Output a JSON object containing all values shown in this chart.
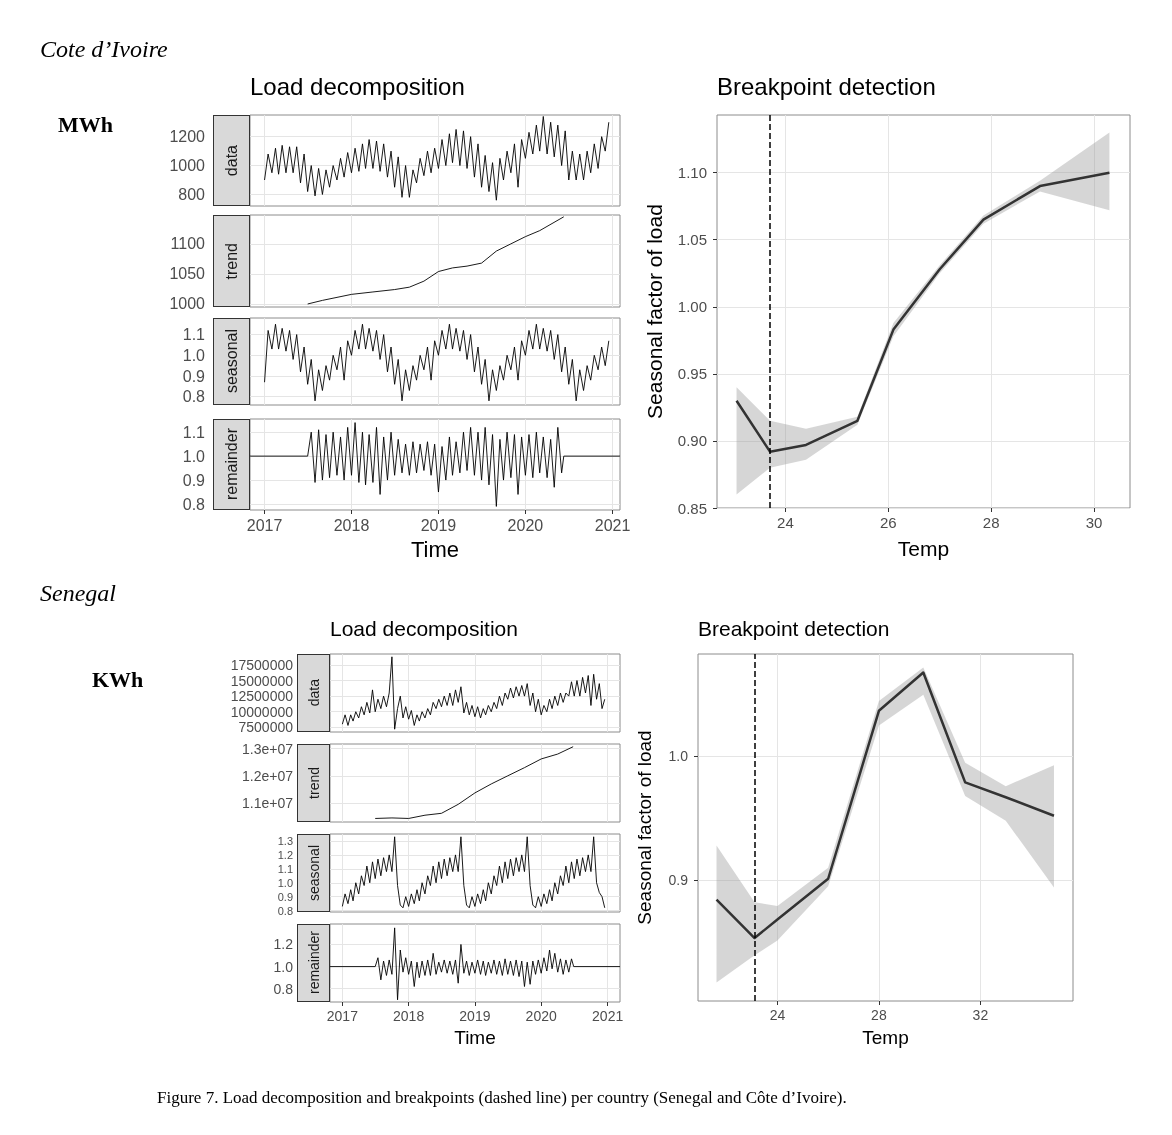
{
  "chart_data": [
    {
      "type": "line",
      "title": "Load decomposition",
      "ylabel": "data",
      "annotations": [
        "Cote d’Ivoire",
        "MWh"
      ],
      "color": "#000000",
      "marker": "none",
      "grid": true,
      "tick_labels": "y",
      "x": [
        "2017-01-01",
        "2017-01-16",
        "2017-02-01",
        "2017-02-16",
        "2017-03-01",
        "2017-03-16",
        "2017-04-01",
        "2017-04-16",
        "2017-05-01",
        "2017-05-16",
        "2017-06-01",
        "2017-06-16",
        "2017-07-01",
        "2017-07-16",
        "2017-08-01",
        "2017-08-16",
        "2017-09-01",
        "2017-09-16",
        "2017-10-01",
        "2017-10-16",
        "2017-11-01",
        "2017-11-16",
        "2017-12-01",
        "2017-12-16",
        "2018-01-01",
        "2018-01-16",
        "2018-02-01",
        "2018-02-16",
        "2018-03-01",
        "2018-03-16",
        "2018-04-01",
        "2018-04-16",
        "2018-05-01",
        "2018-05-16",
        "2018-06-01",
        "2018-06-16",
        "2018-07-01",
        "2018-07-16",
        "2018-08-01",
        "2018-08-16",
        "2018-09-01",
        "2018-09-16",
        "2018-10-01",
        "2018-10-16",
        "2018-11-01",
        "2018-11-16",
        "2018-12-01",
        "2018-12-16",
        "2019-01-01",
        "2019-01-16",
        "2019-02-01",
        "2019-02-16",
        "2019-03-01",
        "2019-03-16",
        "2019-04-01",
        "2019-04-16",
        "2019-05-01",
        "2019-05-16",
        "2019-06-01",
        "2019-06-16",
        "2019-07-01",
        "2019-07-16",
        "2019-08-01",
        "2019-08-16",
        "2019-09-01",
        "2019-09-16",
        "2019-10-01",
        "2019-10-16",
        "2019-11-01",
        "2019-11-16",
        "2019-12-01",
        "2019-12-16",
        "2020-01-01",
        "2020-01-16",
        "2020-02-01",
        "2020-02-16",
        "2020-03-01",
        "2020-03-16",
        "2020-04-01",
        "2020-04-16",
        "2020-05-01",
        "2020-05-16",
        "2020-06-01",
        "2020-06-16",
        "2020-07-01",
        "2020-07-16",
        "2020-08-01",
        "2020-08-16",
        "2020-09-01",
        "2020-09-16",
        "2020-10-01",
        "2020-10-16",
        "2020-11-01",
        "2020-11-16",
        "2020-12-01",
        "2020-12-16"
      ],
      "values": [
        900,
        1080,
        950,
        1120,
        940,
        1140,
        950,
        1130,
        950,
        1130,
        880,
        1080,
        820,
        1000,
        790,
        980,
        800,
        970,
        850,
        1000,
        900,
        1050,
        920,
        1090,
        950,
        1120,
        960,
        1150,
        980,
        1180,
        980,
        1170,
        960,
        1150,
        920,
        1100,
        850,
        1060,
        780,
        1000,
        780,
        970,
        880,
        1050,
        930,
        1100,
        950,
        1120,
        980,
        1180,
        1000,
        1220,
        1020,
        1250,
        1000,
        1240,
        980,
        1200,
        920,
        1150,
        850,
        1070,
        820,
        1020,
        760,
        1050,
        900,
        1100,
        950,
        1150,
        850,
        1180,
        1050,
        1230,
        1080,
        1280,
        1100,
        1340,
        1080,
        1300,
        1060,
        1280,
        1000,
        1240,
        900,
        1100,
        900,
        1080,
        900,
        1100,
        950,
        1150,
        980,
        1200,
        1100,
        1300
      ],
      "xlim": [
        "2016-11-01",
        "2021-02-01"
      ],
      "xticks": [
        "2017",
        "2018",
        "2019",
        "2020",
        "2021"
      ],
      "ylim": [
        720,
        1350
      ],
      "yticks": [
        800,
        1000,
        1200
      ]
    },
    {
      "type": "line",
      "ylabel": "trend",
      "color": "#000000",
      "marker": "none",
      "grid": true,
      "tick_labels": "y",
      "x": [
        "2017-07-01",
        "2017-09-01",
        "2018-01-01",
        "2018-04-01",
        "2018-07-01",
        "2018-09-01",
        "2018-11-01",
        "2019-01-01",
        "2019-03-01",
        "2019-05-01",
        "2019-07-01",
        "2019-09-01",
        "2019-11-01",
        "2020-01-01",
        "2020-03-01",
        "2020-06-10"
      ],
      "values": [
        1000,
        1006,
        1016,
        1020,
        1024,
        1028,
        1038,
        1054,
        1060,
        1063,
        1068,
        1088,
        1100,
        1112,
        1122,
        1145
      ],
      "xlim": [
        "2016-11-01",
        "2021-02-01"
      ],
      "xticks": [
        "2017",
        "2018",
        "2019",
        "2020",
        "2021"
      ],
      "ylim": [
        995,
        1148
      ],
      "yticks": [
        1000,
        1050,
        1100
      ]
    },
    {
      "type": "line",
      "ylabel": "seasonal",
      "color": "#000000",
      "marker": "none",
      "grid": true,
      "tick_labels": "y",
      "x": [
        "2017-01-01",
        "2017-01-16",
        "2017-02-01",
        "2017-02-16",
        "2017-03-01",
        "2017-03-16",
        "2017-04-01",
        "2017-04-16",
        "2017-05-01",
        "2017-05-16",
        "2017-06-01",
        "2017-06-16",
        "2017-07-01",
        "2017-07-16",
        "2017-08-01",
        "2017-08-16",
        "2017-09-01",
        "2017-09-16",
        "2017-10-01",
        "2017-10-16",
        "2017-11-01",
        "2017-11-16",
        "2017-12-01",
        "2017-12-16",
        "2018-01-01",
        "2018-01-16",
        "2018-02-01",
        "2018-02-16",
        "2018-03-01",
        "2018-03-16",
        "2018-04-01",
        "2018-04-16",
        "2018-05-01",
        "2018-05-16",
        "2018-06-01",
        "2018-06-16",
        "2018-07-01",
        "2018-07-16",
        "2018-08-01",
        "2018-08-16",
        "2018-09-01",
        "2018-09-16",
        "2018-10-01",
        "2018-10-16",
        "2018-11-01",
        "2018-11-16",
        "2018-12-01",
        "2018-12-16",
        "2019-01-01",
        "2019-01-16",
        "2019-02-01",
        "2019-02-16",
        "2019-03-01",
        "2019-03-16",
        "2019-04-01",
        "2019-04-16",
        "2019-05-01",
        "2019-05-16",
        "2019-06-01",
        "2019-06-16",
        "2019-07-01",
        "2019-07-16",
        "2019-08-01",
        "2019-08-16",
        "2019-09-01",
        "2019-09-16",
        "2019-10-01",
        "2019-10-16",
        "2019-11-01",
        "2019-11-16",
        "2019-12-01",
        "2019-12-16",
        "2020-01-01",
        "2020-01-16",
        "2020-02-01",
        "2020-02-16",
        "2020-03-01",
        "2020-03-16",
        "2020-04-01",
        "2020-04-16",
        "2020-05-01",
        "2020-05-16",
        "2020-06-01",
        "2020-06-16",
        "2020-07-01",
        "2020-07-16",
        "2020-08-01",
        "2020-08-16",
        "2020-09-01",
        "2020-09-16",
        "2020-10-01",
        "2020-10-16",
        "2020-11-01",
        "2020-11-16",
        "2020-12-01",
        "2020-12-16"
      ],
      "values": [
        0.87,
        1.12,
        1.03,
        1.15,
        1.03,
        1.13,
        1.02,
        1.12,
        0.98,
        1.1,
        0.92,
        1.04,
        0.86,
        0.98,
        0.78,
        0.93,
        0.83,
        0.95,
        0.88,
        1.0,
        0.93,
        1.04,
        0.88,
        1.07,
        1.0,
        1.12,
        1.03,
        1.15,
        1.03,
        1.13,
        1.02,
        1.12,
        0.98,
        1.1,
        0.92,
        1.04,
        0.86,
        0.98,
        0.78,
        0.93,
        0.83,
        0.95,
        0.88,
        1.0,
        0.93,
        1.04,
        0.88,
        1.07,
        1.0,
        1.12,
        1.03,
        1.15,
        1.03,
        1.13,
        1.02,
        1.12,
        0.98,
        1.1,
        0.92,
        1.04,
        0.86,
        0.98,
        0.78,
        0.93,
        0.83,
        0.95,
        0.88,
        1.0,
        0.93,
        1.04,
        0.88,
        1.07,
        1.0,
        1.12,
        1.03,
        1.15,
        1.03,
        1.13,
        1.02,
        1.12,
        0.98,
        1.1,
        0.92,
        1.04,
        0.86,
        0.98,
        0.78,
        0.93,
        0.83,
        0.95,
        0.88,
        1.0,
        0.93,
        1.04,
        0.95,
        1.07
      ],
      "xlim": [
        "2016-11-01",
        "2021-02-01"
      ],
      "xticks": [
        "2017",
        "2018",
        "2019",
        "2020",
        "2021"
      ],
      "ylim": [
        0.76,
        1.18
      ],
      "yticks": [
        0.8,
        0.9,
        {
          "value": 1,
          "label": "1.0"
        },
        1.1
      ]
    },
    {
      "type": "line",
      "ylabel": "remainder",
      "xlabel": "Time",
      "color": "#000000",
      "marker": "none",
      "grid": true,
      "x": [
        "2016-11-01",
        "2017-07-01",
        "2017-07-16",
        "2017-08-01",
        "2017-08-16",
        "2017-09-01",
        "2017-09-16",
        "2017-10-01",
        "2017-10-16",
        "2017-11-01",
        "2017-11-16",
        "2017-12-01",
        "2017-12-16",
        "2018-01-01",
        "2018-01-16",
        "2018-02-01",
        "2018-02-16",
        "2018-03-01",
        "2018-03-16",
        "2018-04-01",
        "2018-04-16",
        "2018-05-01",
        "2018-05-16",
        "2018-06-01",
        "2018-06-16",
        "2018-07-01",
        "2018-07-16",
        "2018-08-01",
        "2018-08-16",
        "2018-09-01",
        "2018-09-16",
        "2018-10-01",
        "2018-10-16",
        "2018-11-01",
        "2018-11-16",
        "2018-12-01",
        "2018-12-16",
        "2019-01-01",
        "2019-01-16",
        "2019-02-01",
        "2019-02-16",
        "2019-03-01",
        "2019-03-16",
        "2019-04-01",
        "2019-04-16",
        "2019-05-01",
        "2019-05-16",
        "2019-06-01",
        "2019-06-16",
        "2019-07-01",
        "2019-07-16",
        "2019-08-01",
        "2019-08-16",
        "2019-09-01",
        "2019-09-16",
        "2019-10-01",
        "2019-10-16",
        "2019-11-01",
        "2019-11-16",
        "2019-12-01",
        "2019-12-16",
        "2020-01-01",
        "2020-01-16",
        "2020-02-01",
        "2020-02-16",
        "2020-03-01",
        "2020-03-16",
        "2020-04-01",
        "2020-04-16",
        "2020-05-01",
        "2020-05-16",
        "2020-06-01",
        "2020-06-10",
        "2021-02-01"
      ],
      "values": [
        1.0,
        1.0,
        1.1,
        0.89,
        1.11,
        0.9,
        1.09,
        0.91,
        1.1,
        0.92,
        1.08,
        0.9,
        1.12,
        0.92,
        1.14,
        0.89,
        1.1,
        0.88,
        1.09,
        0.89,
        1.12,
        0.84,
        1.08,
        0.9,
        1.1,
        0.92,
        1.07,
        0.93,
        1.05,
        0.92,
        1.06,
        0.93,
        1.05,
        0.94,
        1.06,
        0.92,
        1.05,
        0.85,
        1.04,
        0.9,
        1.08,
        0.92,
        1.06,
        0.93,
        1.1,
        0.94,
        1.12,
        0.92,
        1.1,
        0.9,
        1.12,
        0.88,
        1.09,
        0.79,
        1.07,
        0.9,
        1.1,
        0.91,
        1.09,
        0.84,
        1.08,
        0.92,
        1.09,
        0.91,
        1.1,
        0.93,
        1.08,
        0.91,
        1.07,
        0.87,
        1.12,
        0.93,
        1.0,
        1.0
      ],
      "xlim": [
        "2016-11-01",
        "2021-02-01"
      ],
      "xticks": [
        "2017",
        "2018",
        "2019",
        "2020",
        "2021"
      ],
      "ylim": [
        0.775,
        1.155
      ],
      "yticks": [
        0.8,
        0.9,
        {
          "value": 1,
          "label": "1.0"
        },
        1.1
      ]
    },
    {
      "type": "line",
      "title": "Breakpoint detection",
      "xlabel": "Temp",
      "ylabel": "Seasonal factor of load",
      "marker": "none",
      "grid": true,
      "x": [
        23.05,
        23.7,
        24.4,
        25.4,
        26.1,
        27.0,
        27.85,
        28.95,
        30.3
      ],
      "series": [
        {
          "color": "#333333",
          "values": [
            0.93,
            0.892,
            0.897,
            0.915,
            0.983,
            1.028,
            1.065,
            1.09,
            1.1
          ],
          "lower": [
            0.86,
            0.88,
            0.886,
            0.912,
            0.978,
            1.025,
            1.062,
            1.086,
            1.072
          ],
          "upper": [
            0.94,
            0.915,
            0.909,
            0.918,
            0.988,
            1.031,
            1.068,
            1.094,
            1.13
          ]
        }
      ],
      "ref_lines": [
        {
          "axis": "x",
          "value": 23.7,
          "color": "#000000",
          "line_style": "dashed"
        }
      ],
      "xlim": [
        22.67,
        30.7
      ],
      "xticks": [
        24,
        26,
        28,
        30
      ],
      "ylim": [
        0.85,
        1.143
      ],
      "yticks": [
        0.85,
        {
          "value": 0.9,
          "label": "0.90"
        },
        0.95,
        {
          "value": 1,
          "label": "1.00"
        },
        1.05,
        {
          "value": 1.1,
          "label": "1.10"
        }
      ]
    },
    {
      "type": "line",
      "title": "Load decomposition",
      "ylabel": "data",
      "annotations": [
        "Senegal",
        "KWh"
      ],
      "color": "#000000",
      "marker": "none",
      "grid": true,
      "tick_labels": "y",
      "x": [
        "2017-01-01",
        "2017-01-16",
        "2017-02-01",
        "2017-02-16",
        "2017-03-01",
        "2017-03-16",
        "2017-04-01",
        "2017-04-16",
        "2017-05-01",
        "2017-05-16",
        "2017-06-01",
        "2017-06-16",
        "2017-07-01",
        "2017-07-16",
        "2017-08-01",
        "2017-08-16",
        "2017-09-01",
        "2017-09-16",
        "2017-10-01",
        "2017-10-16",
        "2017-11-01",
        "2017-11-16",
        "2017-12-01",
        "2017-12-16",
        "2018-01-01",
        "2018-01-16",
        "2018-02-01",
        "2018-02-16",
        "2018-03-01",
        "2018-03-16",
        "2018-04-01",
        "2018-04-16",
        "2018-05-01",
        "2018-05-16",
        "2018-06-01",
        "2018-06-16",
        "2018-07-01",
        "2018-07-16",
        "2018-08-01",
        "2018-08-16",
        "2018-09-01",
        "2018-09-16",
        "2018-10-01",
        "2018-10-16",
        "2018-11-01",
        "2018-11-16",
        "2018-12-01",
        "2018-12-16",
        "2019-01-01",
        "2019-01-16",
        "2019-02-01",
        "2019-02-16",
        "2019-03-01",
        "2019-03-16",
        "2019-04-01",
        "2019-04-16",
        "2019-05-01",
        "2019-05-16",
        "2019-06-01",
        "2019-06-16",
        "2019-07-01",
        "2019-07-16",
        "2019-08-01",
        "2019-08-16",
        "2019-09-01",
        "2019-09-16",
        "2019-10-01",
        "2019-10-16",
        "2019-11-01",
        "2019-11-16",
        "2019-12-01",
        "2019-12-16",
        "2020-01-01",
        "2020-01-16",
        "2020-02-01",
        "2020-02-16",
        "2020-03-01",
        "2020-03-16",
        "2020-04-01",
        "2020-04-16",
        "2020-05-01",
        "2020-05-16",
        "2020-06-01",
        "2020-06-16",
        "2020-07-01",
        "2020-07-16",
        "2020-08-01",
        "2020-08-16",
        "2020-09-01",
        "2020-09-16",
        "2020-10-01",
        "2020-10-16",
        "2020-11-01",
        "2020-11-16",
        "2020-12-01",
        "2020-12-16"
      ],
      "values": [
        8000000,
        9500000,
        7800000,
        9500000,
        8500000,
        10000000,
        9000000,
        10800000,
        9500000,
        11500000,
        9800000,
        13500000,
        10000000,
        12000000,
        10500000,
        12500000,
        10800000,
        13000000,
        18800000,
        7200000,
        10500000,
        12500000,
        9000000,
        10800000,
        8800000,
        10200000,
        7800000,
        9500000,
        8500000,
        10000000,
        9000000,
        10500000,
        9500000,
        11500000,
        10500000,
        12000000,
        10800000,
        12500000,
        11000000,
        13000000,
        11000000,
        13500000,
        11500000,
        14000000,
        9800000,
        11500000,
        9500000,
        11000000,
        9200000,
        10800000,
        9000000,
        10500000,
        9500000,
        11000000,
        10000000,
        11500000,
        10500000,
        12500000,
        11000000,
        13000000,
        12000000,
        13800000,
        12200000,
        14000000,
        12500000,
        14200000,
        12500000,
        14500000,
        11000000,
        13000000,
        10000000,
        12000000,
        9500000,
        11000000,
        10000000,
        12000000,
        10500000,
        12500000,
        11000000,
        13000000,
        11500000,
        13000000,
        12500000,
        14800000,
        12500000,
        15000000,
        12500000,
        15500000,
        13000000,
        15800000,
        11000000,
        16000000,
        12000000,
        14500000,
        10500000,
        12000000
      ],
      "xlim": [
        "2016-10-25",
        "2021-03-10"
      ],
      "xticks": [
        "2017",
        "2018",
        "2019",
        "2020",
        "2021"
      ],
      "ylim": [
        6750000,
        19250000
      ],
      "yticks": [
        7500000,
        10000000,
        12500000,
        15000000,
        17500000
      ]
    },
    {
      "type": "line",
      "ylabel": "trend",
      "color": "#000000",
      "marker": "none",
      "grid": true,
      "tick_labels": "y",
      "x": [
        "2017-07-01",
        "2017-10-01",
        "2018-01-01",
        "2018-04-01",
        "2018-07-01",
        "2018-10-01",
        "2019-01-01",
        "2019-04-01",
        "2019-07-01",
        "2019-10-01",
        "2020-01-01",
        "2020-04-01",
        "2020-06-25"
      ],
      "values": [
        10430000,
        10450000,
        10430000,
        10550000,
        10620000,
        10950000,
        11370000,
        11700000,
        12000000,
        12300000,
        12620000,
        12800000,
        13070000
      ],
      "xlim": [
        "2016-10-25",
        "2021-03-10"
      ],
      "xticks": [
        "2017",
        "2018",
        "2019",
        "2020",
        "2021"
      ],
      "ylim": [
        10300000,
        13170000
      ],
      "yticks": [
        {
          "value": 11000000,
          "label": "1.1e+07"
        },
        {
          "value": 12000000,
          "label": "1.2e+07"
        },
        {
          "value": 13000000,
          "label": "1.3e+07"
        }
      ]
    },
    {
      "type": "line",
      "ylabel": "seasonal",
      "color": "#000000",
      "marker": "none",
      "grid": true,
      "tick_labels": "y",
      "x": [
        "2017-01-01",
        "2017-01-16",
        "2017-02-01",
        "2017-02-16",
        "2017-03-01",
        "2017-03-16",
        "2017-04-01",
        "2017-04-16",
        "2017-05-01",
        "2017-05-16",
        "2017-06-01",
        "2017-06-16",
        "2017-07-01",
        "2017-07-16",
        "2017-08-01",
        "2017-08-16",
        "2017-09-01",
        "2017-09-16",
        "2017-10-01",
        "2017-10-16",
        "2017-11-01",
        "2017-11-16",
        "2017-12-01",
        "2017-12-16",
        "2018-01-01",
        "2018-01-16",
        "2018-02-01",
        "2018-02-16",
        "2018-03-01",
        "2018-03-16",
        "2018-04-01",
        "2018-04-16",
        "2018-05-01",
        "2018-05-16",
        "2018-06-01",
        "2018-06-16",
        "2018-07-01",
        "2018-07-16",
        "2018-08-01",
        "2018-08-16",
        "2018-09-01",
        "2018-09-16",
        "2018-10-01",
        "2018-10-16",
        "2018-11-01",
        "2018-11-16",
        "2018-12-01",
        "2018-12-16",
        "2019-01-01",
        "2019-01-16",
        "2019-02-01",
        "2019-02-16",
        "2019-03-01",
        "2019-03-16",
        "2019-04-01",
        "2019-04-16",
        "2019-05-01",
        "2019-05-16",
        "2019-06-01",
        "2019-06-16",
        "2019-07-01",
        "2019-07-16",
        "2019-08-01",
        "2019-08-16",
        "2019-09-01",
        "2019-09-16",
        "2019-10-01",
        "2019-10-16",
        "2019-11-01",
        "2019-11-16",
        "2019-12-01",
        "2019-12-16",
        "2020-01-01",
        "2020-01-16",
        "2020-02-01",
        "2020-02-16",
        "2020-03-01",
        "2020-03-16",
        "2020-04-01",
        "2020-04-16",
        "2020-05-01",
        "2020-05-16",
        "2020-06-01",
        "2020-06-16",
        "2020-07-01",
        "2020-07-16",
        "2020-08-01",
        "2020-08-16",
        "2020-09-01",
        "2020-09-16",
        "2020-10-01",
        "2020-10-16",
        "2020-11-01",
        "2020-11-16",
        "2020-12-01",
        "2020-12-16"
      ],
      "values": [
        0.83,
        0.92,
        0.85,
        0.95,
        0.87,
        1.0,
        0.92,
        1.05,
        0.98,
        1.12,
        1.0,
        1.15,
        1.03,
        1.17,
        1.05,
        1.18,
        1.08,
        1.2,
        1.08,
        1.33,
        0.98,
        0.84,
        0.82,
        0.9,
        0.83,
        0.92,
        0.85,
        0.95,
        0.87,
        1.0,
        0.92,
        1.05,
        0.98,
        1.12,
        1.0,
        1.15,
        1.03,
        1.17,
        1.05,
        1.18,
        1.08,
        1.2,
        1.08,
        1.33,
        0.98,
        0.84,
        0.82,
        0.9,
        0.83,
        0.92,
        0.85,
        0.95,
        0.87,
        1.0,
        0.92,
        1.05,
        0.98,
        1.12,
        1.0,
        1.15,
        1.03,
        1.17,
        1.05,
        1.18,
        1.08,
        1.2,
        1.08,
        1.33,
        0.98,
        0.84,
        0.82,
        0.9,
        0.83,
        0.92,
        0.85,
        0.95,
        0.87,
        1.0,
        0.92,
        1.05,
        0.98,
        1.12,
        1.0,
        1.15,
        1.03,
        1.17,
        1.05,
        1.18,
        1.08,
        1.2,
        1.08,
        1.33,
        1.0,
        0.93,
        0.9,
        0.82
      ],
      "xlim": [
        "2016-10-25",
        "2021-03-10"
      ],
      "xticks": [
        "2017",
        "2018",
        "2019",
        "2020",
        "2021"
      ],
      "ylim": [
        0.79,
        1.35
      ],
      "yticks": [
        0.8,
        0.9,
        {
          "value": 1,
          "label": "1.0"
        },
        1.1,
        1.2,
        1.3
      ]
    },
    {
      "type": "line",
      "ylabel": "remainder",
      "xlabel": "Time",
      "color": "#000000",
      "marker": "none",
      "grid": true,
      "x": [
        "2016-10-25",
        "2017-07-01",
        "2017-07-16",
        "2017-08-01",
        "2017-08-16",
        "2017-09-01",
        "2017-09-16",
        "2017-10-01",
        "2017-10-16",
        "2017-11-01",
        "2017-11-16",
        "2017-12-01",
        "2017-12-16",
        "2018-01-01",
        "2018-01-16",
        "2018-02-01",
        "2018-02-16",
        "2018-03-01",
        "2018-03-16",
        "2018-04-01",
        "2018-04-16",
        "2018-05-01",
        "2018-05-16",
        "2018-06-01",
        "2018-06-16",
        "2018-07-01",
        "2018-07-16",
        "2018-08-01",
        "2018-08-16",
        "2018-09-01",
        "2018-09-16",
        "2018-10-01",
        "2018-10-16",
        "2018-11-01",
        "2018-11-16",
        "2018-12-01",
        "2018-12-16",
        "2019-01-01",
        "2019-01-16",
        "2019-02-01",
        "2019-02-16",
        "2019-03-01",
        "2019-03-16",
        "2019-04-01",
        "2019-04-16",
        "2019-05-01",
        "2019-05-16",
        "2019-06-01",
        "2019-06-16",
        "2019-07-01",
        "2019-07-16",
        "2019-08-01",
        "2019-08-16",
        "2019-09-01",
        "2019-09-16",
        "2019-10-01",
        "2019-10-16",
        "2019-11-01",
        "2019-11-16",
        "2019-12-01",
        "2019-12-16",
        "2020-01-01",
        "2020-01-16",
        "2020-02-01",
        "2020-02-16",
        "2020-03-01",
        "2020-03-16",
        "2020-04-01",
        "2020-04-16",
        "2020-05-01",
        "2020-05-16",
        "2020-06-01",
        "2020-06-16",
        "2020-06-28",
        "2021-03-10"
      ],
      "values": [
        1.0,
        1.0,
        1.08,
        0.88,
        1.05,
        0.92,
        1.06,
        0.93,
        1.35,
        0.7,
        1.15,
        0.95,
        1.08,
        0.93,
        1.05,
        0.82,
        1.04,
        0.9,
        1.05,
        0.92,
        1.06,
        0.92,
        1.12,
        0.93,
        1.04,
        0.95,
        1.06,
        0.94,
        1.05,
        0.93,
        1.06,
        0.85,
        1.2,
        0.94,
        1.05,
        0.92,
        1.04,
        0.94,
        1.06,
        0.93,
        1.05,
        0.92,
        1.04,
        0.94,
        1.06,
        0.93,
        1.05,
        0.92,
        1.07,
        0.93,
        1.05,
        0.92,
        1.06,
        0.91,
        1.05,
        0.82,
        1.04,
        0.84,
        1.05,
        0.93,
        1.06,
        0.94,
        1.08,
        0.96,
        1.15,
        0.98,
        1.12,
        0.95,
        1.07,
        0.93,
        1.06,
        0.95,
        1.07,
        1.0,
        1.0
      ],
      "xlim": [
        "2016-10-25",
        "2021-03-10"
      ],
      "xticks": [
        "2017",
        "2018",
        "2019",
        "2020",
        "2021"
      ],
      "ylim": [
        0.68,
        1.385
      ],
      "yticks": [
        0.8,
        {
          "value": 1,
          "label": "1.0"
        },
        1.2
      ]
    },
    {
      "type": "line",
      "title": "Breakpoint detection",
      "xlabel": "Temp",
      "ylabel": "Seasonal factor of load",
      "marker": "none",
      "grid": true,
      "annotations": [
        "Figure 7. Load decomposition and breakpoints (dashed line) per country (Senegal and Côte d’Ivoire)."
      ],
      "x": [
        21.6,
        23.1,
        24.0,
        26.0,
        28.0,
        29.75,
        31.4,
        33.0,
        34.9
      ],
      "series": [
        {
          "color": "#333333",
          "values": [
            0.884,
            0.853,
            0.868,
            0.901,
            1.037,
            1.068,
            0.979,
            0.967,
            0.952
          ],
          "lower": [
            0.817,
            0.839,
            0.851,
            0.895,
            1.025,
            1.05,
            0.968,
            0.948,
            0.894
          ],
          "upper": [
            0.928,
            0.882,
            0.879,
            0.91,
            1.045,
            1.072,
            0.995,
            0.976,
            0.993
          ]
        }
      ],
      "ref_lines": [
        {
          "axis": "x",
          "value": 23.1,
          "color": "#000000",
          "line_style": "dashed"
        }
      ],
      "xlim": [
        20.87,
        35.65
      ],
      "xticks": [
        24,
        28,
        32
      ],
      "ylim": [
        0.802,
        1.083
      ],
      "yticks": [
        0.9,
        {
          "value": 1,
          "label": "1.0"
        }
      ]
    }
  ]
}
